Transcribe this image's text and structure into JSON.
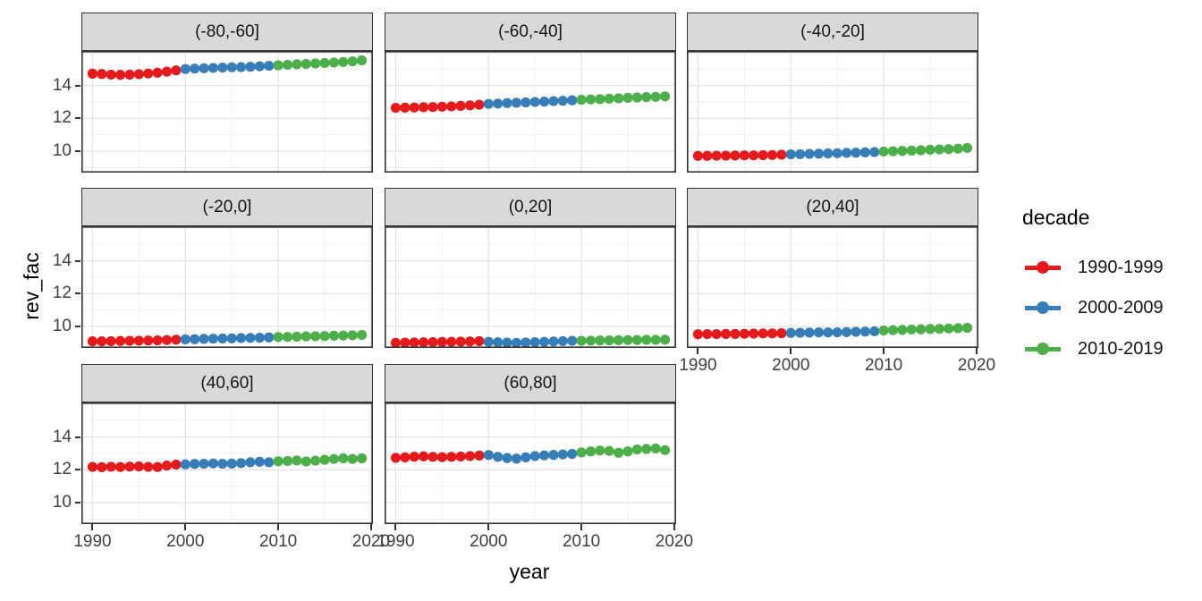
{
  "legend": {
    "title": "decade"
  },
  "chart_data": {
    "type": "scatter",
    "title": "",
    "xlabel": "year",
    "ylabel": "rev_fac",
    "legend_title": "decade",
    "legend_position": "right",
    "grid": {
      "on": true,
      "x_major": [
        1990,
        2000,
        2010,
        2020
      ],
      "x_minor": [
        1995,
        2005,
        2015
      ],
      "y_major": [
        10,
        12,
        14,
        16
      ],
      "y_minor": [
        9,
        11,
        13,
        15
      ]
    },
    "x_ticks": [
      1990,
      2000,
      2010,
      2020
    ],
    "y_ticks": [
      14,
      12,
      10
    ],
    "xlim": [
      1988.8,
      2020.2
    ],
    "ylim": [
      8.7,
      16.1
    ],
    "series_groups": [
      {
        "name": "1990-1999",
        "color": "#E41A1C",
        "year_range": [
          1990,
          1999
        ]
      },
      {
        "name": "2000-2009",
        "color": "#377EB8",
        "year_range": [
          2000,
          2009
        ]
      },
      {
        "name": "2010-2019",
        "color": "#4DAF4A",
        "year_range": [
          2010,
          2019
        ]
      }
    ],
    "x": [
      1990,
      1991,
      1992,
      1993,
      1994,
      1995,
      1996,
      1997,
      1998,
      1999,
      2000,
      2001,
      2002,
      2003,
      2004,
      2005,
      2006,
      2007,
      2008,
      2009,
      2010,
      2011,
      2012,
      2013,
      2014,
      2015,
      2016,
      2017,
      2018,
      2019
    ],
    "facets": [
      {
        "label": "(-80,-60]",
        "values": [
          14.72,
          14.7,
          14.66,
          14.65,
          14.66,
          14.69,
          14.73,
          14.78,
          14.84,
          14.92,
          15.0,
          15.03,
          15.05,
          15.07,
          15.09,
          15.11,
          15.12,
          15.14,
          15.17,
          15.2,
          15.23,
          15.26,
          15.29,
          15.31,
          15.34,
          15.37,
          15.4,
          15.43,
          15.47,
          15.53
        ]
      },
      {
        "label": "(-60,-40]",
        "values": [
          12.64,
          12.65,
          12.66,
          12.68,
          12.69,
          12.71,
          12.73,
          12.76,
          12.79,
          12.83,
          12.88,
          12.9,
          12.93,
          12.95,
          12.97,
          13.0,
          13.02,
          13.05,
          13.07,
          13.1,
          13.13,
          13.15,
          13.17,
          13.2,
          13.22,
          13.25,
          13.27,
          13.29,
          13.31,
          13.34
        ]
      },
      {
        "label": "(-40,-20]",
        "values": [
          9.72,
          9.72,
          9.73,
          9.73,
          9.74,
          9.75,
          9.75,
          9.76,
          9.77,
          9.79,
          9.81,
          9.82,
          9.84,
          9.85,
          9.87,
          9.88,
          9.9,
          9.91,
          9.93,
          9.95,
          9.98,
          10.0,
          10.02,
          10.04,
          10.06,
          10.09,
          10.11,
          10.13,
          10.16,
          10.2
        ]
      },
      {
        "label": "(-20,0]",
        "values": [
          9.1,
          9.1,
          9.11,
          9.12,
          9.13,
          9.14,
          9.15,
          9.16,
          9.18,
          9.2,
          9.22,
          9.23,
          9.25,
          9.26,
          9.27,
          9.28,
          9.3,
          9.31,
          9.32,
          9.34,
          9.36,
          9.37,
          9.38,
          9.4,
          9.41,
          9.42,
          9.44,
          9.45,
          9.47,
          9.49
        ]
      },
      {
        "label": "(0,20]",
        "values": [
          9.01,
          9.02,
          9.03,
          9.04,
          9.05,
          9.06,
          9.07,
          9.08,
          9.09,
          9.11,
          9.07,
          9.04,
          9.02,
          9.01,
          9.03,
          9.05,
          9.07,
          9.09,
          9.11,
          9.13,
          9.13,
          9.14,
          9.15,
          9.16,
          9.17,
          9.18,
          9.18,
          9.19,
          9.19,
          9.2
        ]
      },
      {
        "label": "(20,40]",
        "values": [
          9.53,
          9.54,
          9.54,
          9.55,
          9.55,
          9.56,
          9.57,
          9.58,
          9.58,
          9.59,
          9.61,
          9.62,
          9.63,
          9.64,
          9.64,
          9.65,
          9.66,
          9.68,
          9.69,
          9.71,
          9.76,
          9.78,
          9.8,
          9.82,
          9.83,
          9.85,
          9.86,
          9.88,
          9.9,
          9.92
        ]
      },
      {
        "label": "(40,60]",
        "values": [
          12.18,
          12.16,
          12.19,
          12.17,
          12.2,
          12.21,
          12.18,
          12.17,
          12.26,
          12.32,
          12.33,
          12.36,
          12.37,
          12.39,
          12.37,
          12.38,
          12.41,
          12.46,
          12.49,
          12.46,
          12.52,
          12.54,
          12.57,
          12.51,
          12.56,
          12.61,
          12.66,
          12.7,
          12.66,
          12.7
        ]
      },
      {
        "label": "(60,80]",
        "values": [
          12.73,
          12.76,
          12.8,
          12.82,
          12.79,
          12.77,
          12.79,
          12.81,
          12.84,
          12.87,
          12.9,
          12.79,
          12.72,
          12.68,
          12.76,
          12.84,
          12.88,
          12.91,
          12.94,
          12.97,
          13.06,
          13.12,
          13.18,
          13.15,
          13.04,
          13.12,
          13.24,
          13.27,
          13.3,
          13.2
        ]
      }
    ]
  }
}
